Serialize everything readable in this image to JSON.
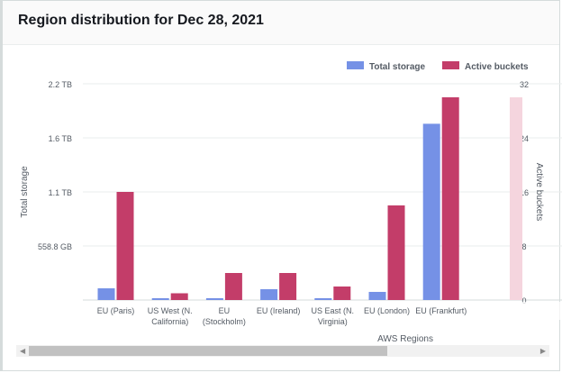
{
  "header": {
    "title": "Region distribution for Dec 28, 2021"
  },
  "chart_data": {
    "type": "bar",
    "title": "Region distribution for Dec 28, 2021",
    "xlabel": "AWS Regions",
    "ylabel": "Total storage",
    "y2label": "Active buckets",
    "categories": [
      "EU (Paris)",
      "US West (N. California)",
      "EU (Stockholm)",
      "EU (Ireland)",
      "US East (N. Virginia)",
      "EU (London)",
      "EU (Frankfurt)"
    ],
    "category_lines": [
      [
        "EU (Paris)"
      ],
      [
        "US West (N.",
        "California)"
      ],
      [
        "EU",
        "(Stockholm)"
      ],
      [
        "EU (Ireland)"
      ],
      [
        "US East (N.",
        "Virginia)"
      ],
      [
        "EU (London)"
      ],
      [
        "EU (Frankfurt)"
      ]
    ],
    "series": [
      {
        "name": "Total storage",
        "axis": "left",
        "unit": "GB",
        "color": "#7591e6",
        "values": [
          121,
          19,
          19,
          112,
          19,
          84,
          1822
        ]
      },
      {
        "name": "Active buckets",
        "axis": "right",
        "color": "#c33d69",
        "values": [
          16,
          1,
          4,
          4,
          2,
          14,
          30
        ]
      }
    ],
    "y_ticks": [
      "558.8 GB",
      "1.1 TB",
      "1.6 TB",
      "2.2 TB"
    ],
    "ylim": [
      0,
      2235.2
    ],
    "y2_ticks": [
      "0",
      "8",
      "16",
      "24",
      "32"
    ],
    "y2lim": [
      0,
      32
    ],
    "grid": true,
    "legend": "top-right"
  }
}
